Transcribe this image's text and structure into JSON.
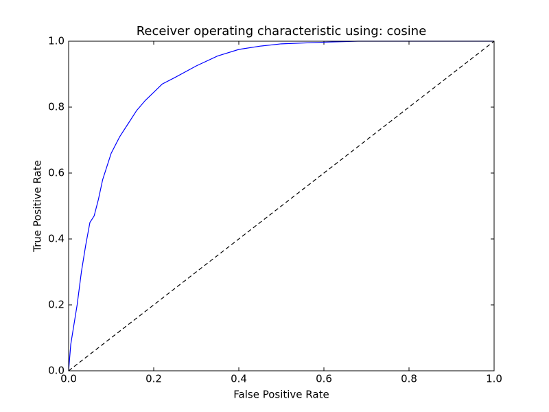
{
  "chart_data": {
    "type": "line",
    "title": "Receiver operating characteristic using: cosine",
    "x_label": "False Positive Rate",
    "y_label": "True Positive Rate",
    "xlim": [
      0,
      1
    ],
    "ylim": [
      0,
      1
    ],
    "xticks": [
      {
        "value": 0,
        "label": "0.0"
      },
      0.2,
      0.4,
      0.6,
      0.8,
      {
        "value": 1,
        "label": "1.0"
      }
    ],
    "yticks": [
      {
        "value": 0,
        "label": "0.0"
      },
      0.2,
      0.4,
      0.6,
      0.8,
      {
        "value": 1,
        "label": "1.0"
      }
    ],
    "series": [
      {
        "color": "#0000ff",
        "dashed": false,
        "x": [
          0,
          0.005,
          0.01,
          0.02,
          0.03,
          0.04,
          0.05,
          0.06,
          0.07,
          0.08,
          0.09,
          0.1,
          0.12,
          0.14,
          0.16,
          0.18,
          0.2,
          0.22,
          0.25,
          0.3,
          0.35,
          0.4,
          0.45,
          0.5,
          0.6,
          0.68,
          1
        ],
        "values": [
          0,
          0.08,
          0.12,
          0.2,
          0.3,
          0.38,
          0.45,
          0.47,
          0.52,
          0.58,
          0.62,
          0.66,
          0.71,
          0.75,
          0.79,
          0.82,
          0.845,
          0.87,
          0.89,
          0.925,
          0.955,
          0.975,
          0.985,
          0.992,
          0.997,
          1,
          1
        ]
      },
      {
        "color": "#000000",
        "dashed": true,
        "x": [
          0,
          1
        ],
        "values": [
          0,
          1
        ]
      }
    ]
  }
}
